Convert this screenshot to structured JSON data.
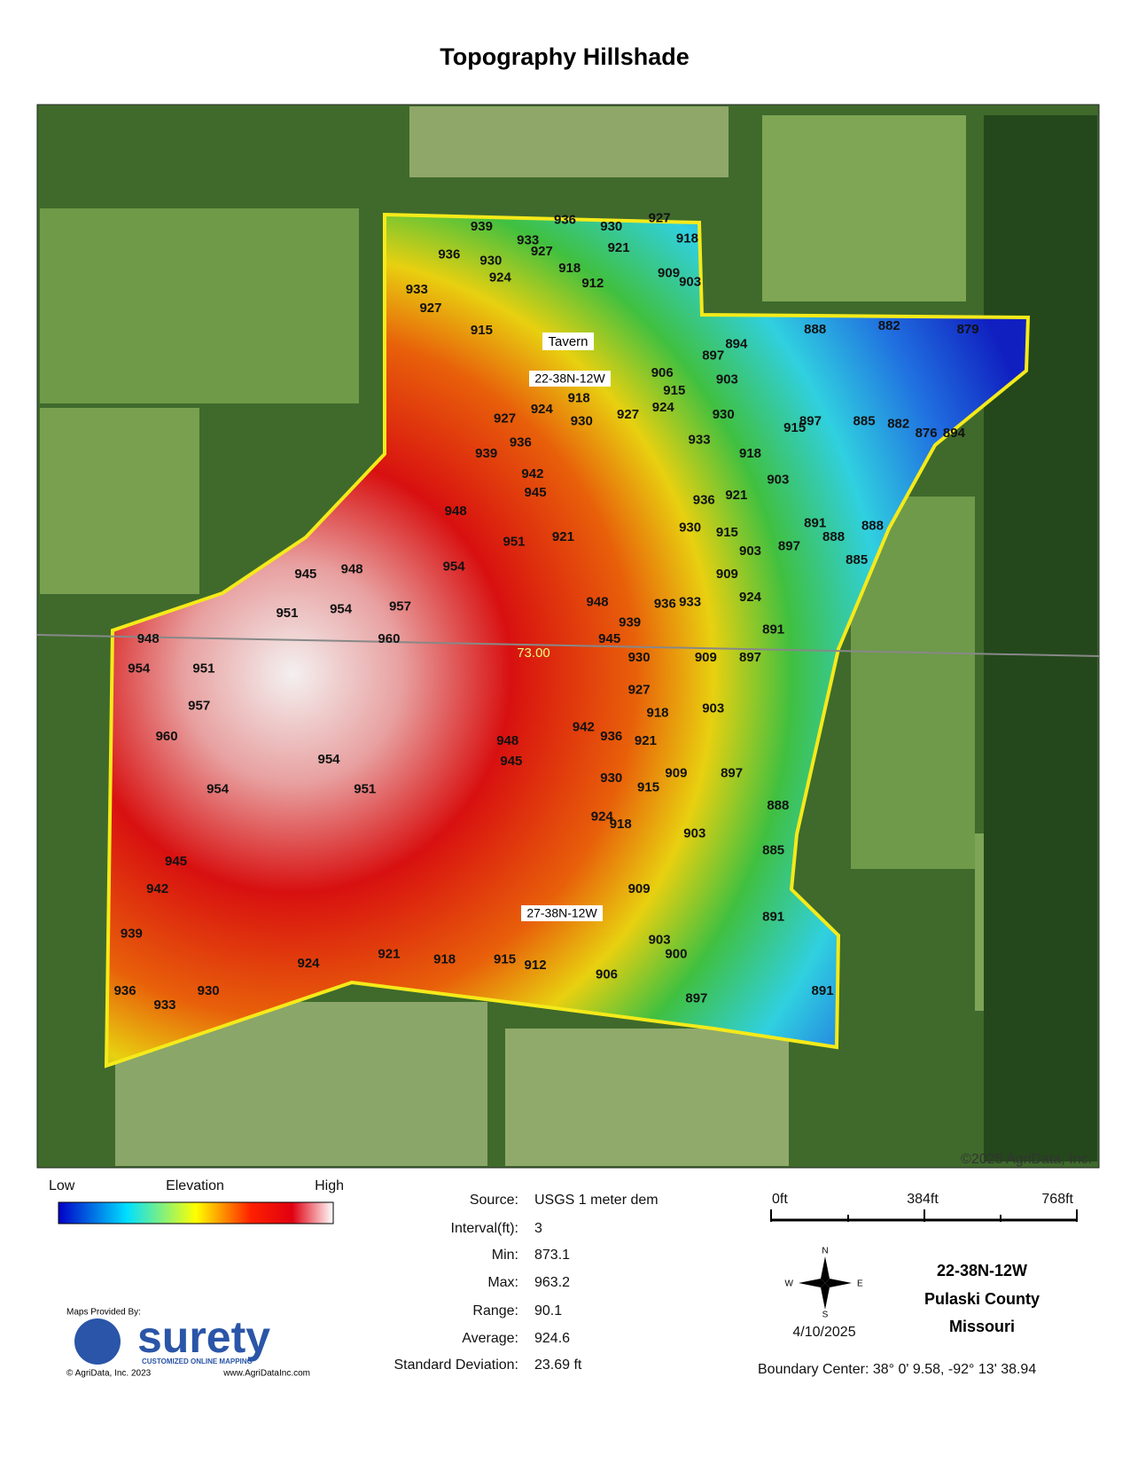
{
  "header": {
    "title": "Topography Hillshade"
  },
  "map": {
    "contour_labels": [
      939,
      936,
      930,
      927,
      918,
      921,
      927,
      930,
      933,
      936,
      933,
      927,
      924,
      918,
      912,
      909,
      903,
      915,
      888,
      882,
      879,
      894,
      897,
      903,
      906,
      915,
      918,
      924,
      927,
      930,
      927,
      924,
      936,
      939,
      942,
      945,
      948,
      951,
      954,
      957,
      960,
      954,
      951,
      948,
      945,
      948,
      954,
      951,
      957,
      960,
      954,
      951,
      954,
      945,
      942,
      939,
      936,
      933,
      930,
      924,
      921,
      918,
      915,
      912,
      906,
      900,
      903,
      909,
      903,
      897,
      891,
      888,
      885,
      897,
      891,
      948,
      945,
      942,
      936,
      930,
      924,
      918,
      915,
      909,
      921,
      918,
      927,
      930,
      909,
      903,
      897,
      891,
      903,
      897,
      891,
      888,
      885,
      888,
      885,
      882,
      876,
      894,
      897,
      915,
      918,
      921,
      915,
      909,
      903,
      924,
      933,
      936,
      939,
      945,
      948,
      921,
      930,
      933,
      936,
      930
    ],
    "tavern": "Tavern",
    "section_north": "22-38N-12W",
    "section_south": "27-38N-12W",
    "center_value": "73.00",
    "copyright": "©2025 AgriData, Inc."
  },
  "legend": {
    "low": "Low",
    "title": "Elevation",
    "high": "High"
  },
  "stats": {
    "rows": [
      [
        "Source:",
        "USGS 1 meter dem"
      ],
      [
        "Interval(ft):",
        "3"
      ],
      [
        "Min:",
        "873.1"
      ],
      [
        "Max:",
        "963.2"
      ],
      [
        "Range:",
        "90.1"
      ],
      [
        "Average:",
        "924.6"
      ],
      [
        "Standard Deviation:",
        "23.69 ft"
      ]
    ]
  },
  "scale_bar": {
    "labels": [
      "0ft",
      "384ft",
      "768ft"
    ]
  },
  "compass": {
    "n": "N",
    "s": "S",
    "e": "E",
    "w": "W"
  },
  "date": "4/10/2025",
  "location": {
    "section": "22-38N-12W",
    "county": "Pulaski County",
    "state": "Missouri",
    "boundary_center": "Boundary Center: 38° 0' 9.58,  -92° 13' 38.94"
  },
  "logo": {
    "provided_by": "Maps Provided By:",
    "brand": "surety",
    "tagline": "CUSTOMIZED ONLINE MAPPING",
    "copyright": "© AgriData, Inc. 2023",
    "url": "www.AgriDataInc.com"
  }
}
